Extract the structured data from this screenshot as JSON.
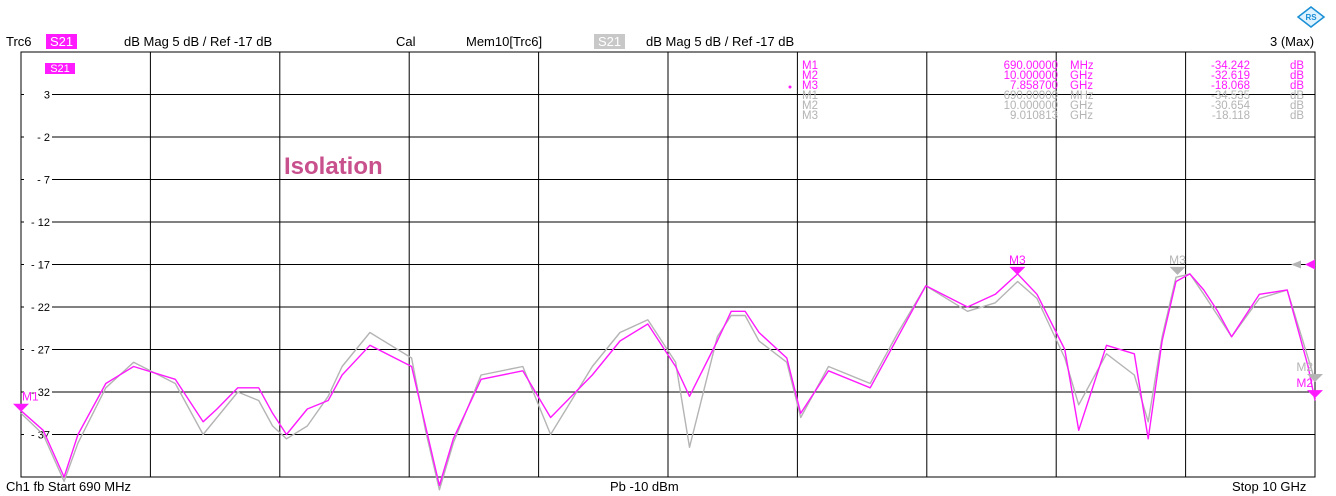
{
  "header": {
    "trace": "Trc6",
    "param": "S21",
    "format": "dB Mag  5 dB /  Ref -17 dB",
    "cal": "Cal",
    "mem": "Mem10[Trc6]",
    "mem_param": "S21",
    "mem_format": "dB Mag  5 dB /  Ref -17 dB",
    "max": "3 (Max)"
  },
  "footer": {
    "channel": "Ch1  fb  Start  690 MHz",
    "power": "Pb   -10 dBm",
    "stop": "Stop  10 GHz"
  },
  "colors": {
    "trace": "#ff1aff",
    "memory": "#b4b4b4",
    "grid": "#000000"
  },
  "chart_data": {
    "type": "line",
    "title": "",
    "annotation": "Isolation",
    "trace_label": "S21",
    "xlim": [
      0.69,
      10.0
    ],
    "ylim": [
      -42,
      8
    ],
    "y_ticks": [
      3,
      -2,
      -7,
      -12,
      -17,
      -22,
      -27,
      -32,
      -37
    ],
    "ref_level": -17,
    "markers_table": {
      "trace": [
        {
          "name": "M1",
          "x": "690.00000",
          "unit": "MHz",
          "value": "-34.242",
          "vunit": "dB"
        },
        {
          "name": "M2",
          "x": "10.000000",
          "unit": "GHz",
          "value": "-32.619",
          "vunit": "dB"
        },
        {
          "name": "M3",
          "x": "7.858700",
          "unit": "GHz",
          "value": "-18.068",
          "vunit": "dB"
        }
      ],
      "memory": [
        {
          "name": "M1",
          "x": "690.00000",
          "unit": "MHz",
          "value": "-34.535",
          "vunit": "dB"
        },
        {
          "name": "M2",
          "x": "10.000000",
          "unit": "GHz",
          "value": "-30.654",
          "vunit": "dB"
        },
        {
          "name": "M3",
          "x": "9.010813",
          "unit": "GHz",
          "value": "-18.118",
          "vunit": "dB"
        }
      ]
    },
    "markers_plot": [
      {
        "label": "M1",
        "x": 0.69,
        "y": -34.2,
        "series": "trace"
      },
      {
        "label": "M3",
        "x": 7.8587,
        "y": -18.1,
        "series": "trace"
      },
      {
        "label": "M3",
        "x": 9.0108,
        "y": -18.1,
        "series": "memory"
      },
      {
        "label": "M2",
        "x": 10.0,
        "y": -32.6,
        "series": "trace"
      },
      {
        "label": "M2",
        "x": 10.0,
        "y": -30.7,
        "series": "memory"
      }
    ],
    "series": [
      {
        "name": "S21",
        "x": [
          0.69,
          0.85,
          1.0,
          1.1,
          1.3,
          1.5,
          1.8,
          2.0,
          2.1,
          2.25,
          2.4,
          2.5,
          2.6,
          2.75,
          2.9,
          3.0,
          3.2,
          3.5,
          3.6,
          3.7,
          3.8,
          4.0,
          4.3,
          4.5,
          4.8,
          5.0,
          5.2,
          5.4,
          5.5,
          5.7,
          5.8,
          5.9,
          6.0,
          6.2,
          6.3,
          6.5,
          6.8,
          7.0,
          7.2,
          7.5,
          7.7,
          7.86,
          8.0,
          8.2,
          8.3,
          8.5,
          8.7,
          8.8,
          8.9,
          9.0,
          9.1,
          9.2,
          9.3,
          9.4,
          9.6,
          9.8,
          9.95,
          10.0
        ],
        "values": [
          -34.2,
          -36.5,
          -42.0,
          -37.0,
          -31.0,
          -29.0,
          -30.5,
          -35.5,
          -34.0,
          -31.5,
          -31.5,
          -34.5,
          -37.0,
          -34.0,
          -33.0,
          -30.0,
          -26.5,
          -29.0,
          -36.0,
          -43.0,
          -37.5,
          -30.5,
          -29.5,
          -35.0,
          -30.0,
          -26.0,
          -24.0,
          -29.0,
          -32.5,
          -26.0,
          -22.5,
          -22.5,
          -25.0,
          -28.0,
          -34.5,
          -29.5,
          -31.5,
          -25.5,
          -19.5,
          -22.0,
          -20.5,
          -18.1,
          -20.5,
          -27.0,
          -36.5,
          -26.5,
          -27.5,
          -37.5,
          -26.0,
          -19.0,
          -18.1,
          -20.0,
          -22.5,
          -25.5,
          -20.5,
          -20.0,
          -29.0,
          -33.0
        ]
      },
      {
        "name": "Mem10",
        "x": [
          0.69,
          0.85,
          1.0,
          1.1,
          1.3,
          1.5,
          1.8,
          2.0,
          2.1,
          2.25,
          2.4,
          2.5,
          2.6,
          2.75,
          2.9,
          3.0,
          3.2,
          3.5,
          3.6,
          3.7,
          3.8,
          4.0,
          4.3,
          4.5,
          4.8,
          5.0,
          5.2,
          5.4,
          5.5,
          5.7,
          5.8,
          5.9,
          6.0,
          6.2,
          6.3,
          6.5,
          6.8,
          7.0,
          7.2,
          7.5,
          7.7,
          7.86,
          8.0,
          8.2,
          8.3,
          8.5,
          8.7,
          8.8,
          8.9,
          9.0,
          9.1,
          9.2,
          9.3,
          9.4,
          9.6,
          9.8,
          9.95,
          10.0
        ],
        "values": [
          -34.5,
          -37.0,
          -42.5,
          -38.0,
          -31.5,
          -28.5,
          -31.0,
          -37.0,
          -35.0,
          -32.0,
          -33.0,
          -36.0,
          -37.5,
          -36.0,
          -32.5,
          -29.0,
          -25.0,
          -28.0,
          -36.5,
          -43.5,
          -38.0,
          -30.0,
          -29.0,
          -37.0,
          -29.0,
          -25.0,
          -23.5,
          -28.5,
          -38.5,
          -25.5,
          -23.0,
          -23.0,
          -26.0,
          -28.5,
          -35.0,
          -29.0,
          -31.0,
          -25.0,
          -19.5,
          -22.5,
          -21.5,
          -19.0,
          -21.0,
          -28.0,
          -33.5,
          -27.5,
          -30.0,
          -35.5,
          -25.5,
          -18.5,
          -18.1,
          -20.5,
          -23.0,
          -25.5,
          -21.0,
          -20.0,
          -28.0,
          -30.7
        ]
      }
    ]
  }
}
